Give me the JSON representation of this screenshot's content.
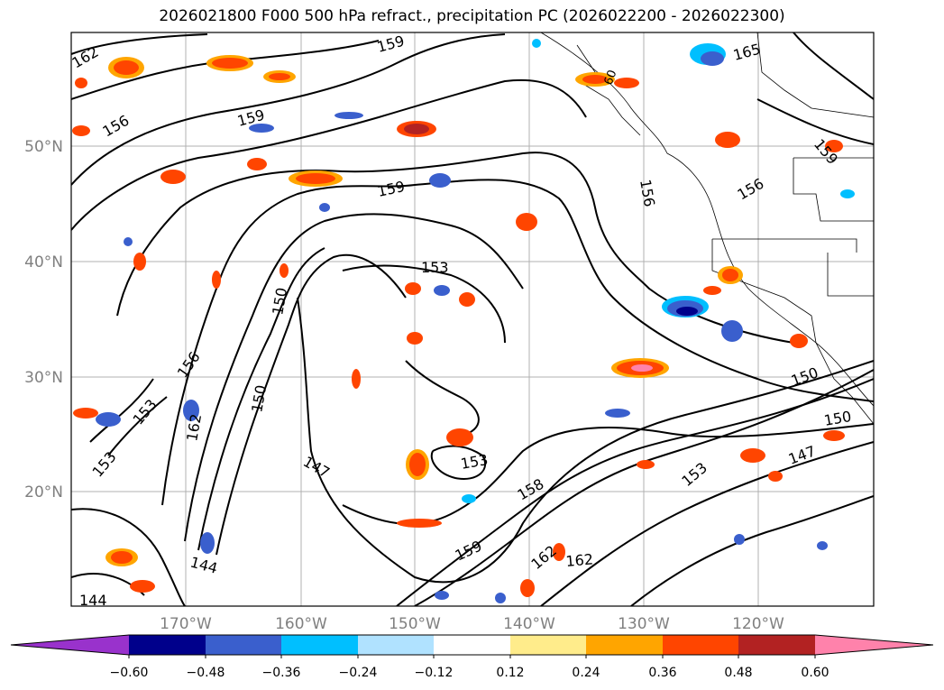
{
  "title": "2026021800 F000 500 hPa refract., precipitation PC (2026022200 - 2026022300)",
  "map": {
    "lat_labels": [
      "50°N",
      "40°N",
      "30°N",
      "20°N"
    ],
    "lon_labels": [
      "170°W",
      "160°W",
      "150°W",
      "140°W",
      "130°W",
      "120°W"
    ],
    "contour_labels": [
      "162",
      "159",
      "156",
      "159",
      "153",
      "159",
      "150",
      "156",
      "153",
      "162",
      "147",
      "153",
      "144",
      "144",
      "150",
      "158",
      "159",
      "162",
      "162",
      "153",
      "147",
      "150",
      "150",
      "153",
      "156",
      "165",
      "156",
      "159"
    ]
  },
  "colorbar": {
    "tick_labels": [
      "−0.60",
      "−0.48",
      "−0.36",
      "−0.24",
      "−0.12",
      "0.12",
      "0.24",
      "0.36",
      "0.48",
      "0.60"
    ],
    "colors": [
      "#9932cc",
      "#00008b",
      "#3a5fcd",
      "#00bfff",
      "#b0e2ff",
      "#ffffff",
      "#ffec8b",
      "#ffa500",
      "#ff4500",
      "#b22222",
      "#ff82ab"
    ]
  }
}
